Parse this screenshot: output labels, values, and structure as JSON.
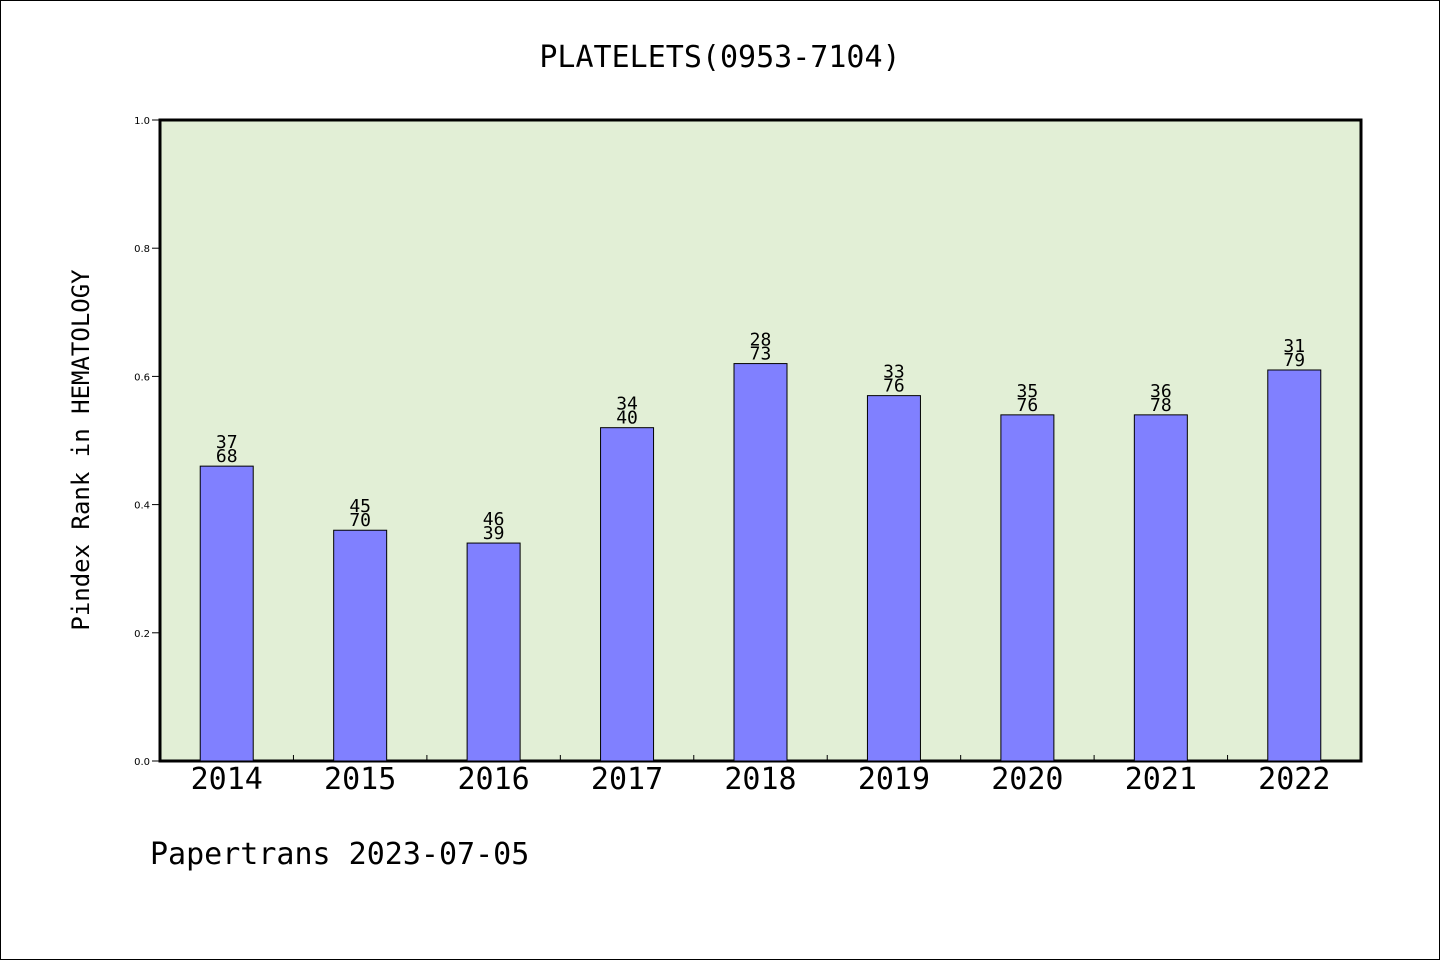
{
  "chart_data": {
    "type": "bar",
    "title": "PLATELETS(0953-7104)",
    "ylabel": "Pindex Rank in HEMATOLOGY",
    "xlabel": "",
    "ylim": [
      0,
      1.0
    ],
    "yticks": [
      "0.0",
      "0.2",
      "0.4",
      "0.6",
      "0.8",
      "1.0"
    ],
    "categories": [
      "2014",
      "2015",
      "2016",
      "2017",
      "2018",
      "2019",
      "2020",
      "2021",
      "2022"
    ],
    "values": [
      0.46,
      0.36,
      0.34,
      0.52,
      0.62,
      0.57,
      0.54,
      0.54,
      0.61
    ],
    "labels_top": [
      "37",
      "45",
      "46",
      "34",
      "28",
      "33",
      "35",
      "36",
      "31"
    ],
    "labels_bottom": [
      "68",
      "70",
      "39",
      "40",
      "73",
      "76",
      "76",
      "78",
      "79"
    ],
    "bar_color": "#8080ff",
    "plot_background": "#e2efd6",
    "footer": "Papertrans 2023-07-05"
  }
}
